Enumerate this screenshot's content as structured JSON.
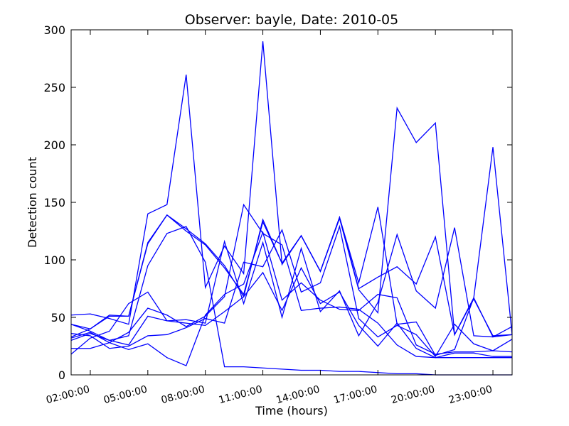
{
  "chart_data": {
    "type": "line",
    "title": "Observer: bayle, Date: 2010-05",
    "xlabel": "Time (hours)",
    "ylabel": "Detection count",
    "xlim": [
      1,
      24
    ],
    "ylim": [
      0,
      300
    ],
    "yticks": [
      0,
      50,
      100,
      150,
      200,
      250,
      300
    ],
    "xtick_values": [
      2,
      5,
      8,
      11,
      14,
      17,
      20,
      23
    ],
    "xtick_labels": [
      "02:00:00",
      "05:00:00",
      "08:00:00",
      "11:00:00",
      "14:00:00",
      "17:00:00",
      "20:00:00",
      "23:00:00"
    ],
    "grid": false,
    "line_color": "#0000ff",
    "series": [
      {
        "x": [
          1,
          2,
          3,
          4,
          5,
          6,
          7,
          8,
          9,
          10,
          11,
          12,
          13,
          14,
          15,
          16,
          17,
          18,
          19,
          20,
          21,
          22,
          23,
          24
        ],
        "values": [
          52,
          53,
          49,
          44,
          140,
          148,
          261,
          76,
          112,
          88,
          290,
          96,
          121,
          90,
          137,
          80,
          146,
          44,
          46,
          17,
          22,
          67,
          198,
          35
        ]
      },
      {
        "x": [
          1,
          2,
          3,
          4,
          5,
          6,
          7,
          8,
          9,
          10,
          11,
          12,
          13,
          14,
          15,
          16,
          17,
          18,
          19,
          20,
          21,
          22,
          23,
          24
        ],
        "values": [
          44,
          40,
          52,
          51,
          115,
          139,
          127,
          114,
          95,
          68,
          135,
          97,
          121,
          90,
          137,
          75,
          85,
          94,
          79,
          120,
          35,
          66,
          34,
          35
        ]
      },
      {
        "x": [
          1,
          2,
          3,
          4,
          5,
          6,
          7,
          8,
          9,
          10,
          11,
          12,
          13,
          14,
          15,
          16,
          17,
          18,
          19,
          20,
          21,
          22,
          23,
          24
        ],
        "values": [
          33,
          40,
          51,
          51,
          114,
          139,
          125,
          113,
          93,
          70,
          133,
          97,
          121,
          90,
          136,
          74,
          54,
          232,
          202,
          219,
          35,
          67,
          33,
          35
        ]
      },
      {
        "x": [
          1,
          2,
          3,
          4,
          5,
          6,
          7,
          8,
          9,
          10,
          11,
          12,
          13,
          14,
          15,
          16,
          17,
          18,
          19,
          20,
          21,
          22,
          23,
          24
        ],
        "values": [
          30,
          36,
          30,
          34,
          95,
          123,
          129,
          98,
          7,
          7,
          6,
          5,
          4,
          4,
          3,
          3,
          2,
          1,
          1,
          0,
          0,
          0,
          0,
          0
        ]
      },
      {
        "x": [
          1,
          2,
          3,
          4,
          5,
          6,
          7,
          8,
          9,
          10,
          11,
          12,
          13,
          14,
          15,
          16,
          17,
          18,
          19,
          20,
          21,
          22,
          23,
          24
        ],
        "values": [
          18,
          32,
          38,
          62,
          72,
          47,
          48,
          45,
          116,
          62,
          115,
          50,
          110,
          55,
          73,
          34,
          63,
          122,
          73,
          58,
          128,
          34,
          33,
          42
        ]
      },
      {
        "x": [
          1,
          2,
          3,
          4,
          5,
          6,
          7,
          8,
          9,
          10,
          11,
          12,
          13,
          14,
          15,
          16,
          17,
          18,
          19,
          20,
          21,
          22,
          23,
          24
        ],
        "values": [
          32,
          37,
          28,
          37,
          58,
          52,
          42,
          51,
          68,
          148,
          123,
          113,
          56,
          58,
          59,
          57,
          45,
          26,
          16,
          15,
          19,
          19,
          16,
          16
        ]
      },
      {
        "x": [
          1,
          2,
          3,
          4,
          5,
          6,
          7,
          8,
          9,
          10,
          11,
          12,
          13,
          14,
          15,
          16,
          17,
          18,
          19,
          20,
          21,
          22,
          23,
          24
        ],
        "values": [
          23,
          23,
          28,
          22,
          27,
          15,
          8,
          52,
          70,
          79,
          124,
          65,
          80,
          65,
          57,
          56,
          70,
          67,
          26,
          18,
          20,
          20,
          21,
          20
        ]
      },
      {
        "x": [
          1,
          2,
          3,
          4,
          5,
          6,
          7,
          8,
          9,
          10,
          11,
          12,
          13,
          14,
          15,
          16,
          17,
          18,
          19,
          20,
          21,
          22,
          23,
          24
        ],
        "values": [
          36,
          34,
          23,
          25,
          34,
          35,
          41,
          49,
          45,
          98,
          94,
          126,
          72,
          80,
          129,
          49,
          33,
          43,
          35,
          16,
          44,
          27,
          21,
          31
        ]
      },
      {
        "x": [
          1,
          2,
          3,
          4,
          5,
          6,
          7,
          8,
          9,
          10,
          11,
          12,
          13,
          14,
          15,
          16,
          17,
          18,
          19,
          20,
          21,
          22,
          23,
          24
        ],
        "values": [
          44,
          38,
          30,
          26,
          51,
          47,
          45,
          43,
          55,
          68,
          89,
          56,
          93,
          62,
          72,
          43,
          25,
          45,
          23,
          15,
          15,
          15,
          15,
          15
        ]
      }
    ]
  }
}
